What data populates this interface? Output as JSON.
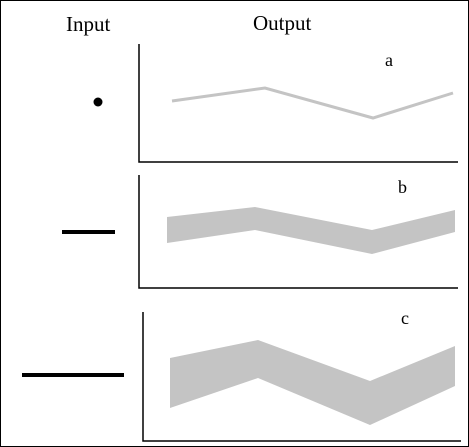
{
  "header": {
    "input_label": "Input",
    "output_label": "Output"
  },
  "colors": {
    "stroke": "#000000",
    "output_band": "#c4c4c4",
    "background": "#ffffff"
  },
  "panels": [
    {
      "id": "a",
      "label": "a",
      "input_shape": "dot",
      "output_shape": "thin-zigzag-line"
    },
    {
      "id": "b",
      "label": "b",
      "input_shape": "short-line",
      "output_shape": "medium-zigzag-band"
    },
    {
      "id": "c",
      "label": "c",
      "input_shape": "long-line",
      "output_shape": "wide-zigzag-band"
    }
  ]
}
